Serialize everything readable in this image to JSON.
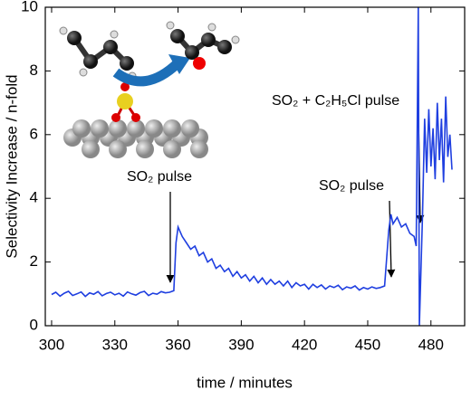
{
  "chart_data": {
    "type": "line",
    "xlabel": "time / minutes",
    "ylabel": "Selectivity Increase / n-fold",
    "xlim": [
      297,
      496
    ],
    "ylim": [
      0,
      10
    ],
    "xticks": [
      300,
      330,
      360,
      390,
      420,
      450,
      480
    ],
    "yticks": [
      0,
      2,
      4,
      6,
      8,
      10
    ],
    "annotations": [
      "SO₂  pulse",
      "SO₂  pulse",
      "SO₂ + C₂H₅Cl  pulse"
    ],
    "series": [
      {
        "color": "#1f3fe0",
        "x": [
          300,
          302,
          304,
          306,
          308,
          310,
          312,
          314,
          316,
          318,
          320,
          322,
          324,
          326,
          328,
          330,
          332,
          334,
          336,
          338,
          340,
          342,
          344,
          346,
          348,
          350,
          352,
          354,
          356,
          358,
          359,
          360,
          362,
          364,
          366,
          368,
          370,
          372,
          374,
          376,
          378,
          380,
          382,
          384,
          386,
          388,
          390,
          392,
          394,
          396,
          398,
          400,
          402,
          404,
          406,
          408,
          410,
          412,
          414,
          416,
          418,
          420,
          422,
          424,
          426,
          428,
          430,
          432,
          434,
          436,
          438,
          440,
          442,
          444,
          446,
          448,
          450,
          452,
          454,
          456,
          458,
          460,
          461,
          462,
          464,
          466,
          468,
          470,
          472,
          473,
          474,
          474.5,
          476,
          477,
          478,
          479,
          480,
          481,
          482,
          483,
          484,
          485,
          486,
          487,
          488,
          489,
          490
        ],
        "values": [
          0.98,
          1.05,
          0.93,
          1.02,
          1.08,
          0.95,
          1.0,
          1.06,
          0.92,
          1.03,
          0.99,
          1.07,
          0.94,
          1.01,
          1.05,
          0.97,
          1.02,
          0.93,
          1.06,
          1.0,
          0.96,
          1.04,
          1.08,
          0.95,
          1.02,
          0.99,
          1.07,
          1.03,
          1.05,
          1.1,
          2.6,
          3.1,
          2.8,
          2.6,
          2.4,
          2.5,
          2.2,
          2.3,
          2.0,
          2.1,
          1.8,
          1.9,
          1.7,
          1.8,
          1.55,
          1.7,
          1.5,
          1.6,
          1.4,
          1.55,
          1.35,
          1.5,
          1.3,
          1.45,
          1.3,
          1.4,
          1.25,
          1.4,
          1.2,
          1.35,
          1.25,
          1.3,
          1.15,
          1.3,
          1.2,
          1.28,
          1.15,
          1.25,
          1.2,
          1.27,
          1.13,
          1.22,
          1.18,
          1.25,
          1.12,
          1.2,
          1.15,
          1.22,
          1.17,
          1.2,
          1.25,
          3.0,
          3.5,
          3.2,
          3.4,
          3.1,
          3.2,
          2.9,
          2.8,
          2.5,
          10,
          0,
          3.5,
          6.5,
          4.8,
          6.8,
          5.0,
          6.2,
          4.6,
          7.0,
          5.2,
          6.5,
          4.5,
          7.2,
          5.3,
          6.0,
          4.9
        ]
      }
    ]
  }
}
